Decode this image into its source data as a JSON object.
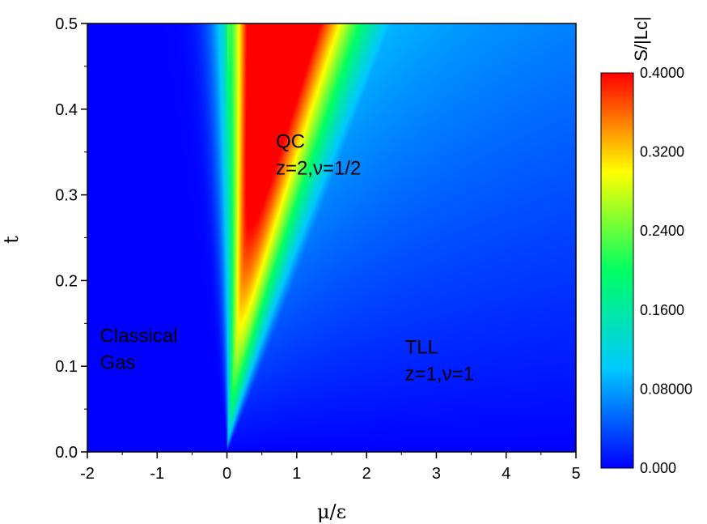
{
  "chart_data": {
    "type": "heatmap",
    "xlabel": "μ/ε",
    "ylabel": "t",
    "xlim": [
      -2,
      5
    ],
    "ylim": [
      0.0,
      0.5
    ],
    "x_ticks": [
      "-2",
      "-1",
      "0",
      "1",
      "2",
      "3",
      "4",
      "5"
    ],
    "x_tick_values": [
      -2,
      -1,
      0,
      1,
      2,
      3,
      4,
      5
    ],
    "y_ticks": [
      "0.0",
      "0.1",
      "0.2",
      "0.3",
      "0.4",
      "0.5"
    ],
    "y_tick_values": [
      0.0,
      0.1,
      0.2,
      0.3,
      0.4,
      0.5
    ],
    "colorbar": {
      "title": "S/|Lc|",
      "min": 0.0,
      "max": 0.4,
      "tick_labels": [
        "0.000",
        "0.08000",
        "0.1600",
        "0.2400",
        "0.3200",
        "0.4000"
      ],
      "tick_values": [
        0.0,
        0.08,
        0.16,
        0.24,
        0.32,
        0.4
      ],
      "colormap": [
        "#0000ff",
        "#00c8ff",
        "#00ff64",
        "#ffff00",
        "#ff0000"
      ]
    },
    "annotations": [
      {
        "id": "qc",
        "lines": [
          "QC",
          "z=2,ν=1/2"
        ],
        "x": 0.7,
        "y": 0.355
      },
      {
        "id": "classical",
        "lines": [
          "Classical",
          "Gas"
        ],
        "x": -1.82,
        "y": 0.128
      },
      {
        "id": "tll",
        "lines": [
          "TLL",
          "z=1,ν=1"
        ],
        "x": 2.55,
        "y": 0.115
      }
    ],
    "grid": false
  }
}
